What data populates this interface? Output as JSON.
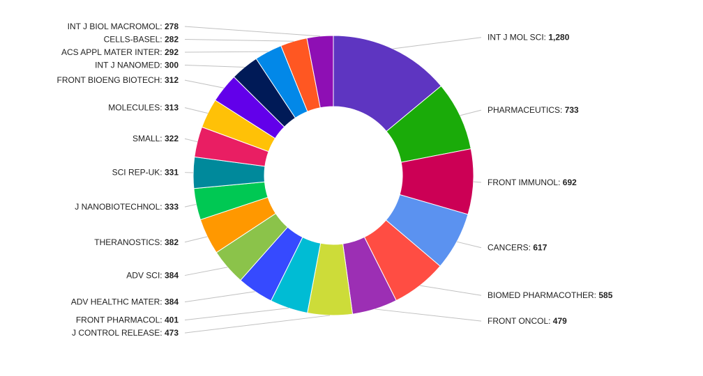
{
  "chart_data": {
    "type": "pie",
    "donut": true,
    "title": "",
    "slices": [
      {
        "label": "INT J MOL SCI",
        "value": 1280,
        "display": "1,280",
        "color": "#5e35c1"
      },
      {
        "label": "PHARMACEUTICS",
        "value": 733,
        "display": "733",
        "color": "#1aab09"
      },
      {
        "label": "FRONT IMMUNOL",
        "value": 692,
        "display": "692",
        "color": "#cc0055"
      },
      {
        "label": "CANCERS",
        "value": 617,
        "display": "617",
        "color": "#5b92f0"
      },
      {
        "label": "BIOMED PHARMACOTHER",
        "value": 585,
        "display": "585",
        "color": "#ff4d43"
      },
      {
        "label": "FRONT ONCOL",
        "value": 479,
        "display": "479",
        "color": "#9c2fb4"
      },
      {
        "label": "J CONTROL RELEASE",
        "value": 473,
        "display": "473",
        "color": "#cddc39"
      },
      {
        "label": "FRONT PHARMACOL",
        "value": 401,
        "display": "401",
        "color": "#00bcd4"
      },
      {
        "label": "ADV HEALTHC MATER",
        "value": 384,
        "display": "384",
        "color": "#364aff"
      },
      {
        "label": "ADV SCI",
        "value": 384,
        "display": "384",
        "color": "#8bc34a"
      },
      {
        "label": "THERANOSTICS",
        "value": 382,
        "display": "382",
        "color": "#ff9800"
      },
      {
        "label": "J NANOBIOTECHNOL",
        "value": 333,
        "display": "333",
        "color": "#00c853"
      },
      {
        "label": "SCI REP-UK",
        "value": 331,
        "display": "331",
        "color": "#00899b"
      },
      {
        "label": "SMALL",
        "value": 322,
        "display": "322",
        "color": "#e91e63"
      },
      {
        "label": "MOLECULES",
        "value": 313,
        "display": "313",
        "color": "#ffc107"
      },
      {
        "label": "FRONT BIOENG BIOTECH",
        "value": 312,
        "display": "312",
        "color": "#6200ea"
      },
      {
        "label": "INT J NANOMED",
        "value": 300,
        "display": "300",
        "color": "#001a57"
      },
      {
        "label": "ACS APPL MATER INTER",
        "value": 292,
        "display": "292",
        "color": "#0288e8"
      },
      {
        "label": "CELLS-BASEL",
        "value": 282,
        "display": "282",
        "color": "#ff5722"
      },
      {
        "label": "INT J BIOL MACROMOL",
        "value": 278,
        "display": "278",
        "color": "#8e0fb4"
      }
    ]
  }
}
